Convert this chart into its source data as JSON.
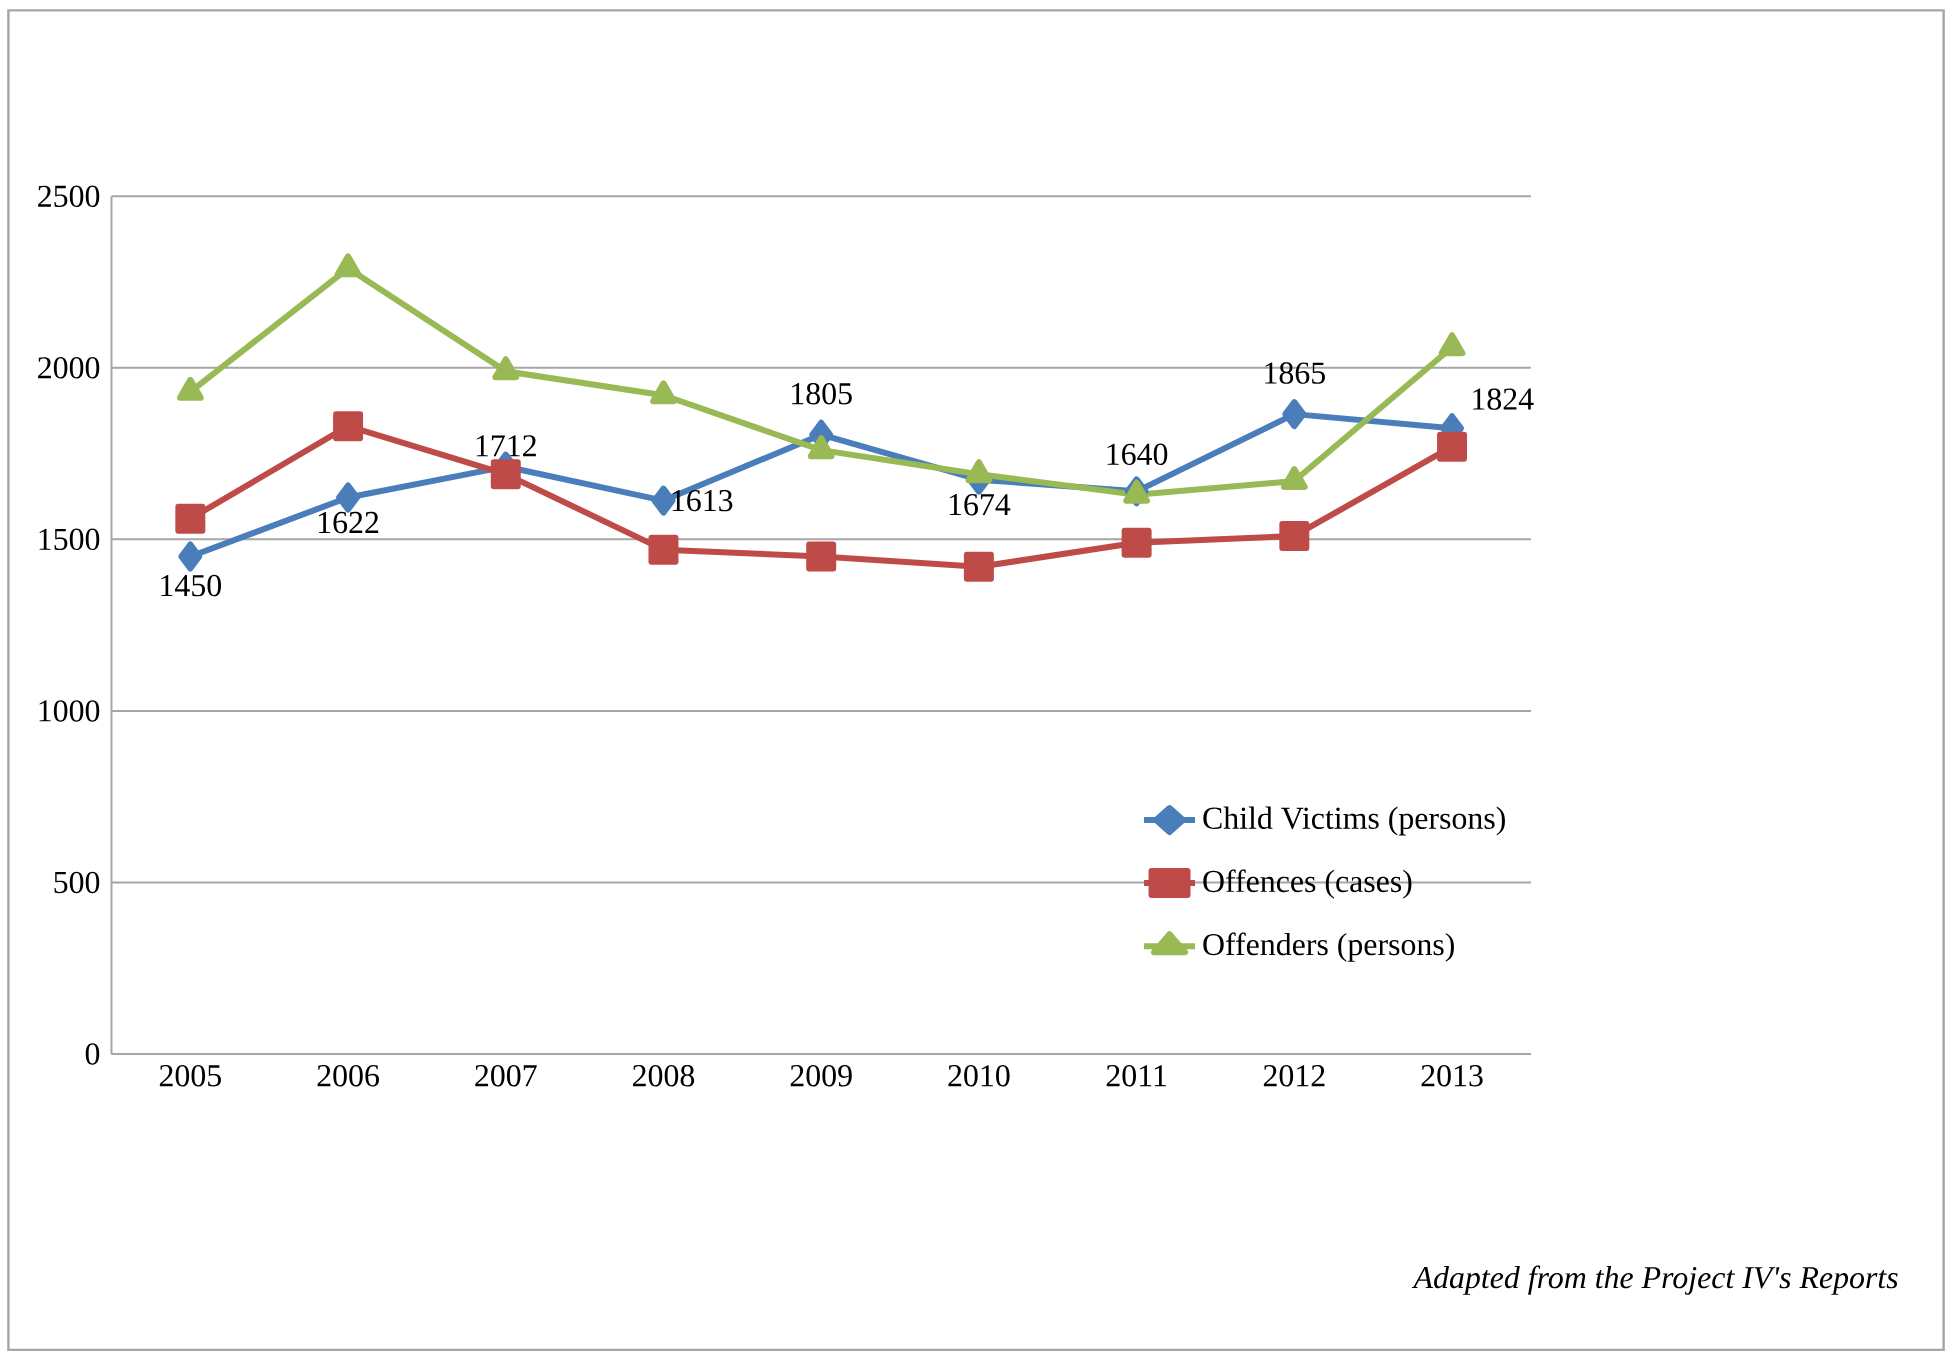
{
  "chart_data": {
    "type": "line",
    "categories": [
      "2005",
      "2006",
      "2007",
      "2008",
      "2009",
      "2010",
      "2011",
      "2012",
      "2013"
    ],
    "series": [
      {
        "name": "Child Victims (persons)",
        "color": "#4a7ebb",
        "marker": "diamond",
        "values": [
          1450,
          1622,
          1712,
          1613,
          1805,
          1674,
          1640,
          1865,
          1824
        ],
        "value_labels": [
          "1450",
          "1622",
          "1712",
          "1613",
          "1805",
          "1674",
          "1640",
          "1865",
          "1824"
        ]
      },
      {
        "name": "Offences (cases)",
        "color": "#be4b48",
        "marker": "square",
        "values": [
          1560,
          1830,
          1690,
          1470,
          1450,
          1420,
          1490,
          1510,
          1770
        ]
      },
      {
        "name": "Offenders (persons)",
        "color": "#98b954",
        "marker": "triangle",
        "values": [
          1930,
          2290,
          1990,
          1920,
          1760,
          1690,
          1630,
          1670,
          2060
        ]
      }
    ],
    "ylim": [
      0,
      2500
    ],
    "yticks": [
      0,
      500,
      1000,
      1500,
      2000,
      2500
    ],
    "grid": "y",
    "legend": "bottom right",
    "line_style": "solid",
    "annotations": [
      "Adapted from the Project IV's Reports"
    ]
  }
}
